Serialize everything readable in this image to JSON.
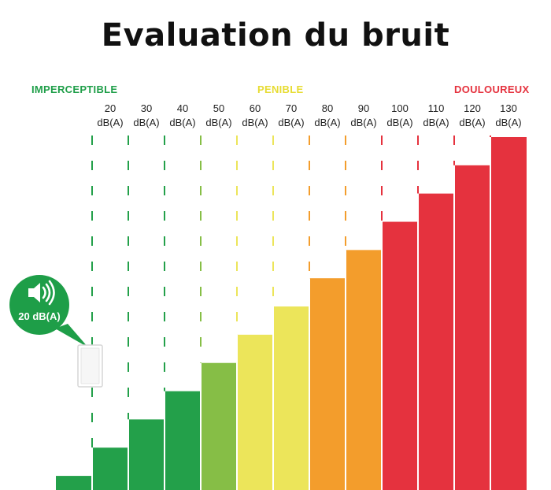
{
  "title": "Evaluation du bruit",
  "zones": {
    "imperceptible": {
      "label": "IMPERCEPTIBLE",
      "color": "#1e9e48"
    },
    "penible": {
      "label": "PENIBLE",
      "color": "#e7dc33"
    },
    "douloureux": {
      "label": "DOULOUREUX",
      "color": "#e5323e"
    }
  },
  "device_bubble": {
    "value": "20 dB(A)",
    "icon": "speaker-icon",
    "color": "#1e9e48"
  },
  "chart_data": {
    "type": "bar",
    "categories": [
      "",
      "20\ndB(A)",
      "30\ndB(A)",
      "40\ndB(A)",
      "50\ndB(A)",
      "60\ndB(A)",
      "70\ndB(A)",
      "80\ndB(A)",
      "90\ndB(A)",
      "100\ndB(A)",
      "110\ndB(A)",
      "120\ndB(A)",
      "130\ndB(A)"
    ],
    "values": [
      10,
      20,
      30,
      40,
      50,
      60,
      70,
      80,
      90,
      100,
      110,
      120,
      130
    ],
    "colors": [
      "#23a04a",
      "#23a04a",
      "#23a04a",
      "#23a04a",
      "#86be46",
      "#ece55a",
      "#ece55a",
      "#f39d2c",
      "#f39d2c",
      "#e5323e",
      "#e5323e",
      "#e5323e",
      "#e5323e"
    ],
    "ylim": [
      0,
      130
    ],
    "xlabel": "",
    "ylabel": ""
  }
}
